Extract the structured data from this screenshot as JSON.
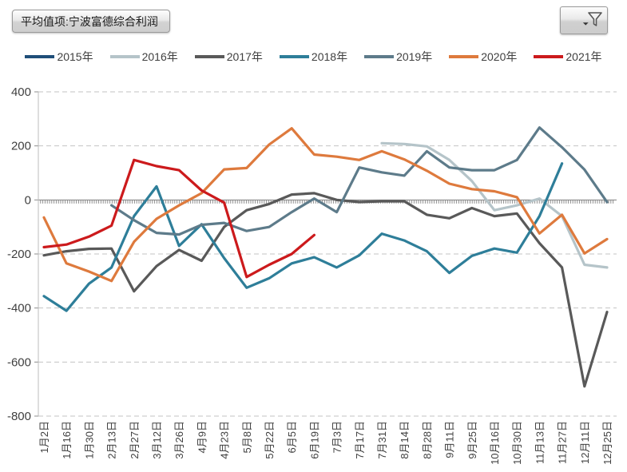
{
  "header": {
    "field_button_label": "平均值项:宁波富德综合利润",
    "filter_icon": "funnel-icon"
  },
  "chart_data": {
    "type": "line",
    "title": "平均值项:宁波富德综合利润",
    "xlabel": "",
    "ylabel": "",
    "ylim": [
      -800,
      400
    ],
    "yticks": [
      400,
      200,
      0,
      -200,
      -400,
      -600,
      -800
    ],
    "grid": "horizontal-dashed, solid zero axis with minor ticks",
    "legend_position": "top",
    "categories": [
      "1月2日",
      "1月16日",
      "1月30日",
      "2月13日",
      "2月27日",
      "3月12日",
      "3月26日",
      "4月9日",
      "4月23日",
      "5月8日",
      "5月22日",
      "6月5日",
      "6月19日",
      "7月3日",
      "7月17日",
      "7月31日",
      "8月14日",
      "8月28日",
      "9月11日",
      "9月25日",
      "10月16日",
      "10月30日",
      "11月13日",
      "11月27日",
      "12月11日",
      "12月25日"
    ],
    "series": [
      {
        "name": "2015年",
        "color": "#1F4E79",
        "values": [
          null,
          null,
          null,
          null,
          null,
          null,
          null,
          null,
          null,
          null,
          null,
          null,
          null,
          null,
          null,
          null,
          null,
          null,
          null,
          null,
          null,
          null,
          null,
          null,
          null,
          null
        ]
      },
      {
        "name": "2016年",
        "color": "#B5C4C9",
        "values": [
          null,
          null,
          null,
          null,
          null,
          null,
          null,
          null,
          null,
          null,
          null,
          null,
          null,
          null,
          null,
          210,
          207,
          198,
          148,
          70,
          -38,
          -20,
          5,
          -60,
          -240,
          -250
        ]
      },
      {
        "name": "2017年",
        "color": "#595959",
        "values": [
          -205,
          -190,
          -181,
          -180,
          -338,
          -245,
          -185,
          -225,
          -100,
          -38,
          -15,
          20,
          25,
          0,
          -8,
          -5,
          -5,
          -55,
          -68,
          -30,
          -60,
          -50,
          -160,
          -250,
          -690,
          -415
        ]
      },
      {
        "name": "2018年",
        "color": "#2E7E99",
        "values": [
          -356,
          -410,
          -310,
          -250,
          -60,
          50,
          -170,
          -90,
          -215,
          -325,
          -290,
          -235,
          -212,
          -250,
          -205,
          -125,
          -150,
          -190,
          -270,
          -207,
          -180,
          -195,
          -60,
          135,
          null,
          null
        ]
      },
      {
        "name": "2019年",
        "color": "#5D7B8A",
        "values": [
          null,
          null,
          null,
          -20,
          -75,
          -122,
          -128,
          -92,
          -85,
          -115,
          -100,
          -45,
          5,
          -45,
          120,
          102,
          90,
          180,
          120,
          110,
          110,
          148,
          268,
          195,
          112,
          -8
        ]
      },
      {
        "name": "2020年",
        "color": "#DE7A3D",
        "values": [
          -65,
          -235,
          -265,
          -300,
          -155,
          -70,
          -20,
          25,
          113,
          118,
          205,
          265,
          168,
          160,
          148,
          180,
          150,
          108,
          60,
          40,
          32,
          10,
          -124,
          -55,
          -198,
          -145
        ]
      },
      {
        "name": "2021年",
        "color": "#CC1A1C",
        "values": [
          -175,
          -165,
          -136,
          -95,
          148,
          125,
          110,
          35,
          -10,
          -285,
          -240,
          -200,
          -130,
          null,
          null,
          null,
          null,
          null,
          null,
          null,
          null,
          null,
          null,
          null,
          null,
          null
        ]
      }
    ]
  }
}
